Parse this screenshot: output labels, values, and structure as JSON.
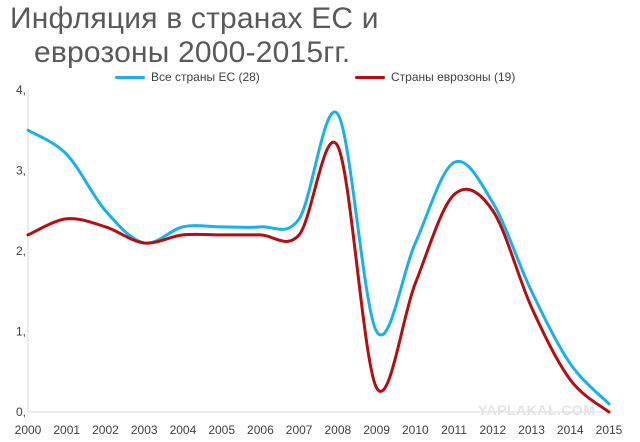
{
  "chart_data": {
    "type": "line",
    "title": "Инфляция в странах ЕС и еврозоны 2000-2015гг.",
    "title_lines": [
      "Инфляция в странах ЕС и",
      "еврозоны 2000-2015гг."
    ],
    "x": [
      2000,
      2001,
      2002,
      2003,
      2004,
      2005,
      2006,
      2007,
      2008,
      2009,
      2010,
      2011,
      2012,
      2013,
      2014,
      2015
    ],
    "x_tick_labels": [
      "2000",
      "2001",
      "2002",
      "2003",
      "2004",
      "2005",
      "2006",
      "2007",
      "2008",
      "2009",
      "2010",
      "2011",
      "2012",
      "2013",
      "2014",
      "2015"
    ],
    "y_tick_values": [
      0,
      1,
      2,
      3,
      4
    ],
    "y_tick_labels": [
      "0,",
      "1,",
      "2,",
      "3,",
      "4,"
    ],
    "ylim": [
      0,
      4
    ],
    "grid": false,
    "legend_position": "top",
    "series": [
      {
        "name": "Все страны ЕС (28)",
        "color": "#1ab0e8",
        "values": [
          3.5,
          3.2,
          2.5,
          2.1,
          2.3,
          2.3,
          2.3,
          2.4,
          3.7,
          1.0,
          2.1,
          3.1,
          2.6,
          1.5,
          0.6,
          0.1
        ]
      },
      {
        "name": "Страны еврозоны (19)",
        "color": "#b50e12",
        "values": [
          2.2,
          2.4,
          2.3,
          2.1,
          2.2,
          2.2,
          2.2,
          2.2,
          3.3,
          0.3,
          1.6,
          2.7,
          2.5,
          1.3,
          0.4,
          0.0
        ]
      }
    ]
  },
  "watermark": "YAPLAKAL.COM"
}
